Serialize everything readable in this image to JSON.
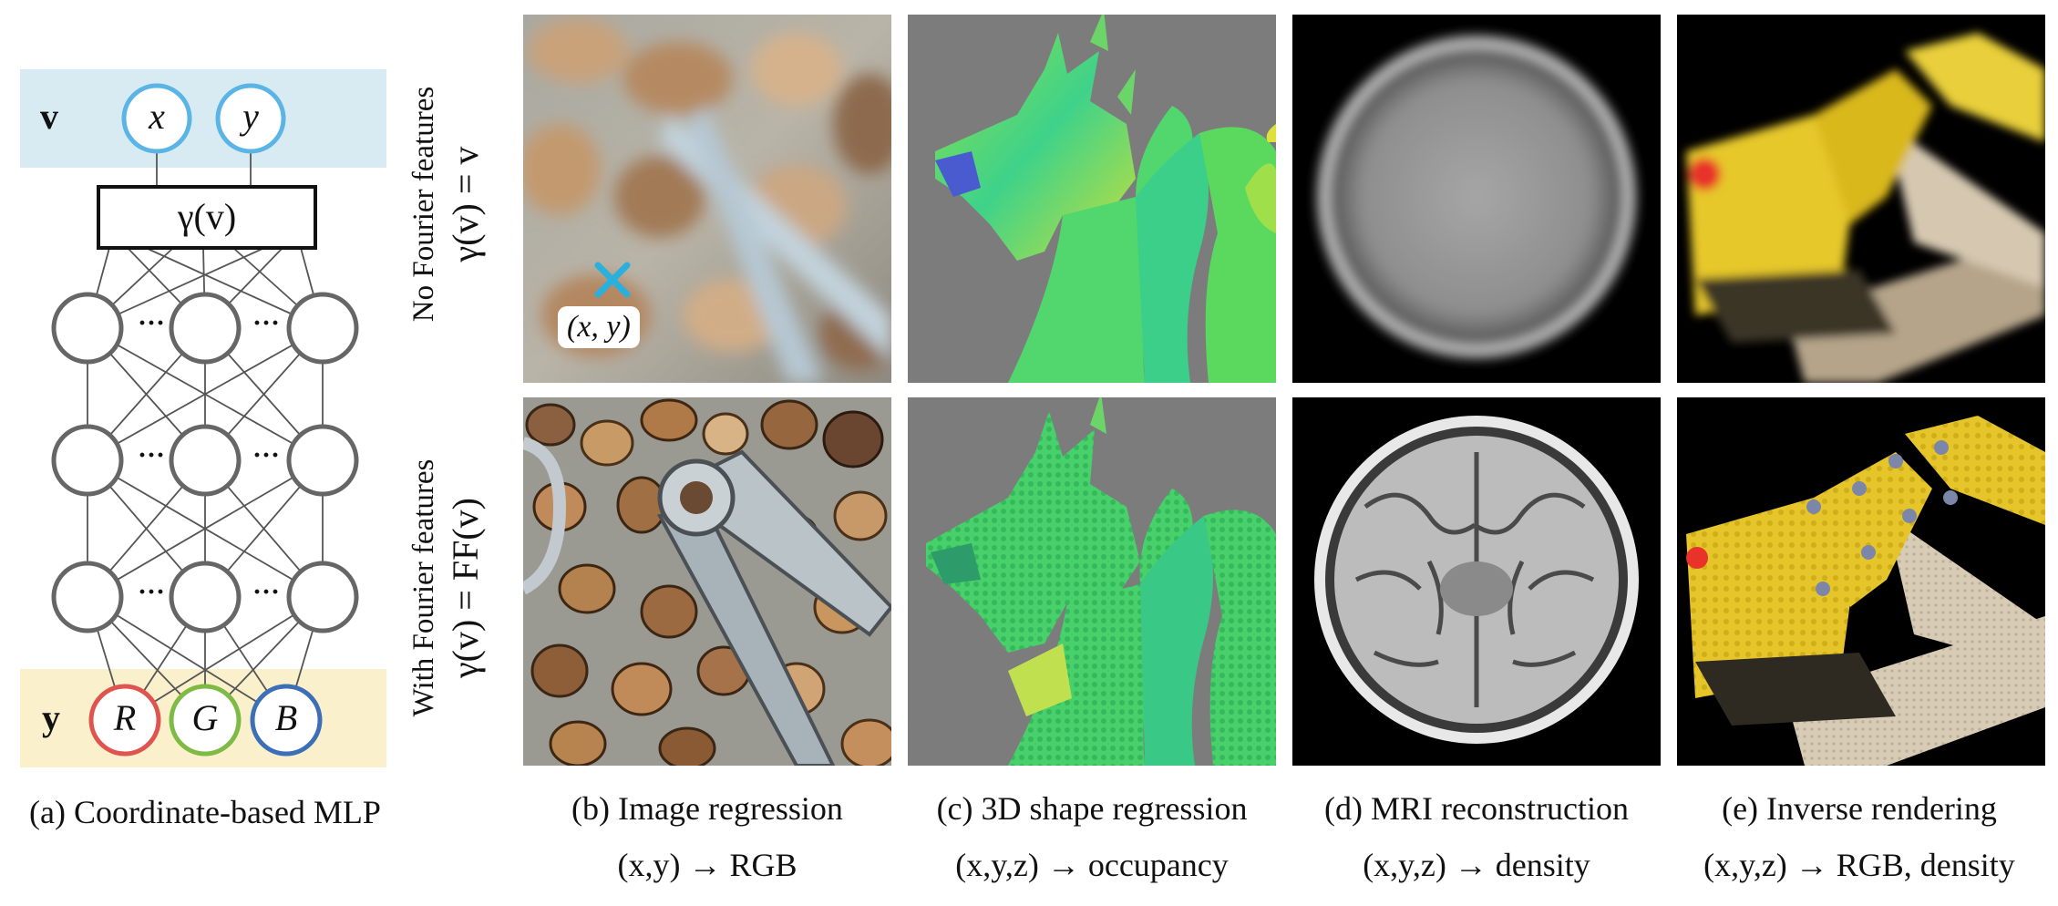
{
  "mlp": {
    "input_label": "v",
    "input_x": "x",
    "input_y": "y",
    "gamma_label": "γ(v)",
    "ellipsis": "···",
    "output_label": "y",
    "out_r": "R",
    "out_g": "G",
    "out_b": "B",
    "caption": "(a) Coordinate-based MLP",
    "colors": {
      "input_band": "#d8ebf2",
      "output_band": "#fbf0cc",
      "input_node": "#5ab4e5",
      "node_R": "#e0544f",
      "node_G": "#7dbb44",
      "node_B": "#3d6fb6",
      "hidden_node": "#6a6a6a"
    }
  },
  "rows": {
    "top_title": "No Fourier features",
    "top_eq": "γ(v) = v",
    "bottom_title": "With Fourier features",
    "bottom_eq": "γ(v) = FF(v)"
  },
  "marker": {
    "label": "(x, y)",
    "color": "#2ab0dc"
  },
  "columns": [
    {
      "caption": "(b) Image regression",
      "mapping": "(x,y) → RGB"
    },
    {
      "caption": "(c) 3D shape regression",
      "mapping": "(x,y,z) → occupancy"
    },
    {
      "caption": "(d) MRI reconstruction",
      "mapping": "(x,y,z) → density"
    },
    {
      "caption": "(e) Inverse rendering",
      "mapping": "(x,y,z) → RGB, density"
    }
  ]
}
